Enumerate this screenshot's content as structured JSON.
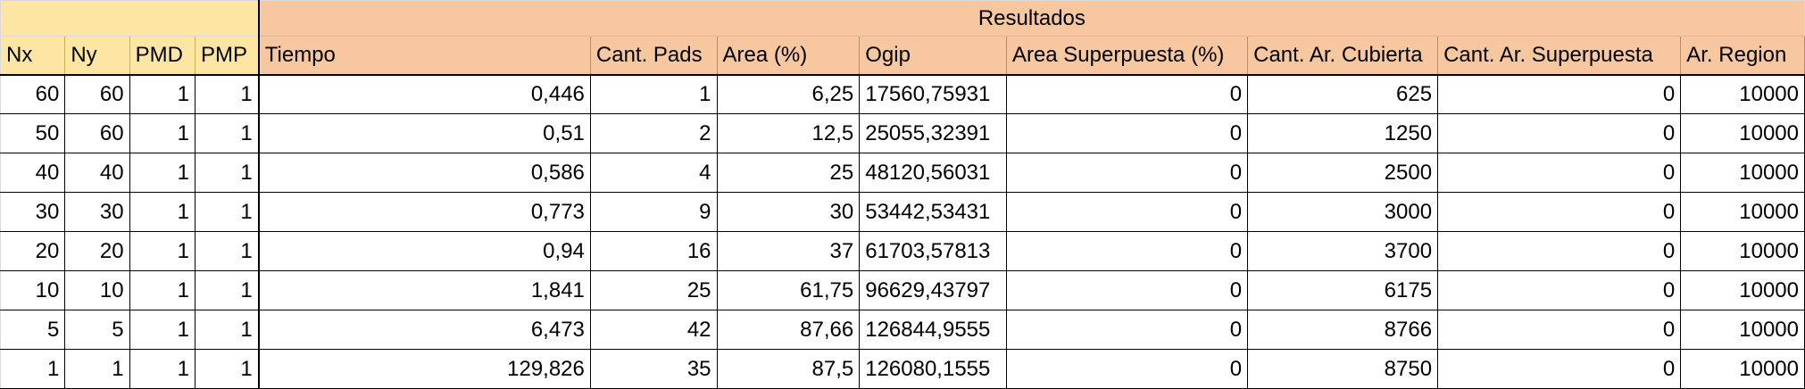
{
  "sheet": {
    "group_header": "Resultados",
    "headers": [
      "Nx",
      "Ny",
      "PMD",
      "PMP",
      "Tiempo",
      "Cant. Pads",
      "Area (%)",
      "Ogip",
      "Area Superpuesta (%)",
      "Cant. Ar. Cubierta",
      "Cant. Ar. Superpuesta",
      "Ar. Region"
    ],
    "rows": [
      [
        "60",
        "60",
        "1",
        "1",
        "0,446",
        "1",
        "6,25",
        "17560,75931",
        "0",
        "625",
        "0",
        "10000"
      ],
      [
        "50",
        "60",
        "1",
        "1",
        "0,51",
        "2",
        "12,5",
        "25055,32391",
        "0",
        "1250",
        "0",
        "10000"
      ],
      [
        "40",
        "40",
        "1",
        "1",
        "0,586",
        "4",
        "25",
        "48120,56031",
        "0",
        "2500",
        "0",
        "10000"
      ],
      [
        "30",
        "30",
        "1",
        "1",
        "0,773",
        "9",
        "30",
        "53442,53431",
        "0",
        "3000",
        "0",
        "10000"
      ],
      [
        "20",
        "20",
        "1",
        "1",
        "0,94",
        "16",
        "37",
        "61703,57813",
        "0",
        "3700",
        "0",
        "10000"
      ],
      [
        "10",
        "10",
        "1",
        "1",
        "1,841",
        "25",
        "61,75",
        "96629,43797",
        "0",
        "6175",
        "0",
        "10000"
      ],
      [
        "5",
        "5",
        "1",
        "1",
        "6,473",
        "42",
        "87,66",
        "126844,9555",
        "0",
        "8766",
        "0",
        "10000"
      ],
      [
        "1",
        "1",
        "1",
        "1",
        "129,826",
        "35",
        "87,5",
        "126080,1555",
        "0",
        "8750",
        "0",
        "10000"
      ]
    ]
  },
  "colors": {
    "input_header_bg": "#fde6a3",
    "result_header_bg": "#f7c7a0"
  }
}
